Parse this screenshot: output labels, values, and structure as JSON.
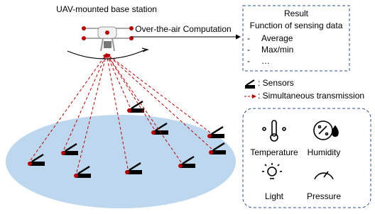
{
  "header": {
    "drone_label": "UAV-mounted base station",
    "link_label": "Over-the-air Computation"
  },
  "result": {
    "title": "Result",
    "subtitle": "Function of sensing data",
    "items": [
      {
        "bullet": "-",
        "text": "Average"
      },
      {
        "bullet": "-",
        "text": "Max/min"
      },
      {
        "bullet": "-",
        "text": "…"
      }
    ]
  },
  "legend": {
    "sensors": ": Sensors",
    "transmission": ": Simultaneous transmission"
  },
  "sensor_types": [
    "Temperature",
    "Humidity",
    "Light",
    "Pressure"
  ]
}
